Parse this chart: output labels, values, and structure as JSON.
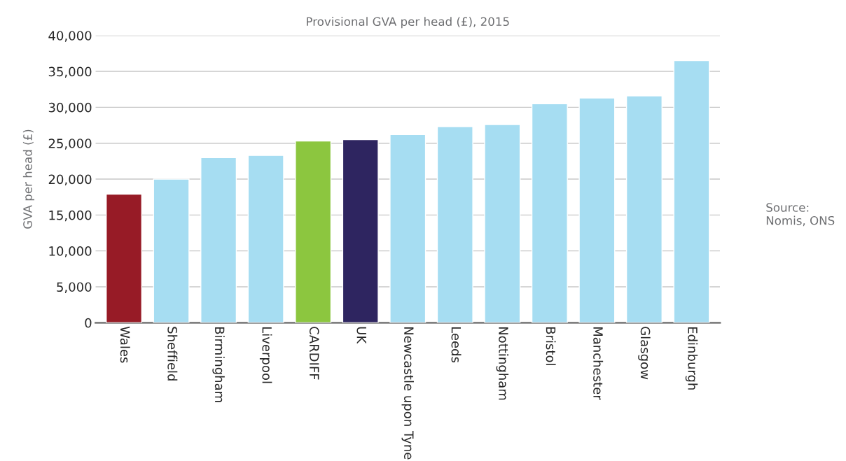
{
  "chart_data": {
    "type": "bar",
    "title": "Provisional GVA per head (£), 2015",
    "ylabel": "GVA per head (£)",
    "categories": [
      "Wales",
      "Sheffield",
      "Birmingham",
      "Liverpool",
      "CARDIFF",
      "UK",
      "Newcastle upon Tyne",
      "Leeds",
      "Nottingham",
      "Bristol",
      "Manchester",
      "Glasgow",
      "Edinburgh"
    ],
    "values": [
      17900,
      20000,
      23000,
      23300,
      25300,
      25500,
      26200,
      27300,
      27600,
      30500,
      31300,
      31600,
      36500
    ],
    "colors": [
      "#971b26",
      "#a6ddf2",
      "#a6ddf2",
      "#a6ddf2",
      "#8cc63f",
      "#2e2560",
      "#a6ddf2",
      "#a6ddf2",
      "#a6ddf2",
      "#a6ddf2",
      "#a6ddf2",
      "#a6ddf2",
      "#a6ddf2"
    ],
    "ylim": [
      0,
      40000
    ],
    "yticks": [
      {
        "value": 0,
        "label": "0"
      },
      {
        "value": 5000,
        "label": "5,000"
      },
      {
        "value": 10000,
        "label": "10,000"
      },
      {
        "value": 15000,
        "label": "15,000"
      },
      {
        "value": 20000,
        "label": "20,000"
      },
      {
        "value": 25000,
        "label": "25,000"
      },
      {
        "value": 30000,
        "label": "30,000"
      },
      {
        "value": 35000,
        "label": "35,000"
      },
      {
        "value": 40000,
        "label": "40,000"
      }
    ],
    "grid": "y",
    "legend": false,
    "annotations": [
      "Source:\nNomis, ONS"
    ]
  }
}
